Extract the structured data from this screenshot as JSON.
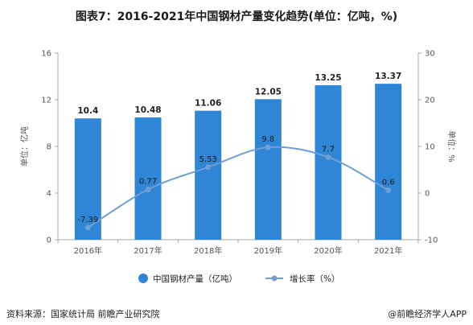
{
  "title": "图表7：2016-2021年中国钢材产量变化趋势(单位：亿吨，%)",
  "footer": {
    "source": "资料来源：国家统计局 前瞻产业研究院",
    "brand": "@前瞻经济学人APP"
  },
  "colors": {
    "bar": "#2f86d6",
    "line": "#6f9fd3",
    "axis": "#aaaaaa"
  },
  "chart_data": {
    "type": "bar",
    "categories": [
      "2016年",
      "2017年",
      "2018年",
      "2019年",
      "2020年",
      "2021年"
    ],
    "series": [
      {
        "name": "中国钢材产量（亿吨）",
        "type": "bar",
        "axis": "left",
        "values": [
          10.4,
          10.48,
          11.06,
          12.05,
          13.25,
          13.37
        ],
        "labels": [
          "10.4",
          "10.48",
          "11.06",
          "12.05",
          "13.25",
          "13.37"
        ]
      },
      {
        "name": "增长率（%）",
        "type": "line",
        "axis": "right",
        "values": [
          -7.39,
          0.77,
          5.53,
          9.8,
          7.7,
          0.6
        ],
        "labels": [
          "-7.39",
          "0.77",
          "5.53",
          "9.8",
          "7.7",
          "0.6"
        ]
      }
    ],
    "ylabel": "单位：亿吨",
    "y2label": "单位：%",
    "ylim": [
      0,
      16
    ],
    "yticks": [
      "0",
      "4",
      "8",
      "12",
      "16"
    ],
    "y2lim": [
      -10,
      30
    ],
    "y2ticks": [
      "-10",
      "0",
      "10",
      "20",
      "30"
    ],
    "legend_position": "bottom"
  }
}
